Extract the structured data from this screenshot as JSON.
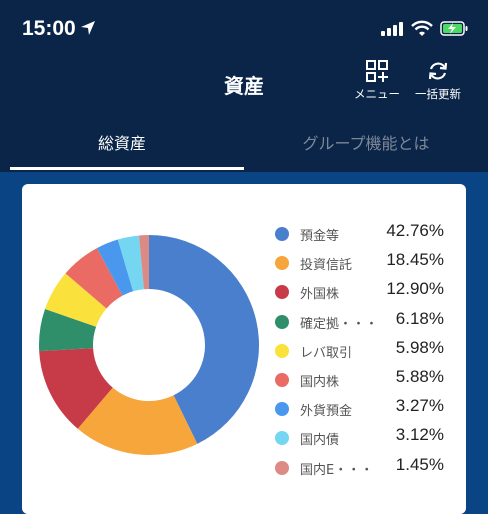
{
  "status": {
    "time": "15:00"
  },
  "header": {
    "title": "資産",
    "menu_label": "メニュー",
    "refresh_label": "一括更新"
  },
  "tabs": [
    {
      "label": "総資産"
    },
    {
      "label": "グループ機能とは"
    }
  ],
  "legend": [
    {
      "name": "預金等",
      "pct": "42.76%",
      "color": "#4a7fce"
    },
    {
      "name": "投資信託",
      "pct": "18.45%",
      "color": "#f6a63a"
    },
    {
      "name": "外国株",
      "pct": "12.90%",
      "color": "#c73b48"
    },
    {
      "name": "確定拠・・・",
      "pct": "6.18%",
      "color": "#2f8f6a"
    },
    {
      "name": "レバ取引",
      "pct": "5.98%",
      "color": "#fae13c"
    },
    {
      "name": "国内株",
      "pct": "5.88%",
      "color": "#ea6b63"
    },
    {
      "name": "外貨預金",
      "pct": "3.27%",
      "color": "#4a98ee"
    },
    {
      "name": "国内債",
      "pct": "3.12%",
      "color": "#74d6f1"
    },
    {
      "name": "国内E・・・",
      "pct": "1.45%",
      "color": "#dc8a84"
    }
  ],
  "chart_data": {
    "type": "pie",
    "categories": [
      "預金等",
      "投資信託",
      "外国株",
      "確定拠・・・",
      "レバ取引",
      "国内株",
      "外貨預金",
      "国内債",
      "国内E・・・"
    ],
    "values": [
      42.76,
      18.45,
      12.9,
      6.18,
      5.98,
      5.88,
      3.27,
      3.12,
      1.45
    ],
    "colors": [
      "#4a7fce",
      "#f6a63a",
      "#c73b48",
      "#2f8f6a",
      "#fae13c",
      "#ea6b63",
      "#4a98ee",
      "#74d6f1",
      "#dc8a84"
    ],
    "donut": true
  }
}
